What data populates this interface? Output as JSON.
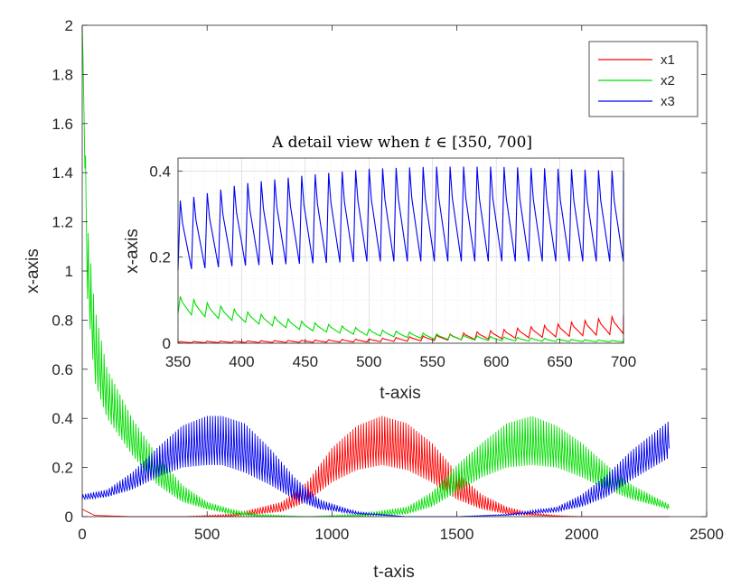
{
  "chart_data": [
    {
      "type": "line",
      "role": "main",
      "title": "",
      "xlabel": "t-axis",
      "ylabel": "x-axis",
      "xlim": [
        0,
        2500
      ],
      "ylim": [
        0,
        2
      ],
      "xticks": [
        0,
        500,
        1000,
        1500,
        2000,
        2500
      ],
      "yticks": [
        0,
        0.2,
        0.4,
        0.6,
        0.8,
        1,
        1.2,
        1.4,
        1.6,
        1.8,
        2
      ],
      "xtick_labels": [
        "0",
        "500",
        "1000",
        "1500",
        "2000",
        "2500"
      ],
      "ytick_labels": [
        "0",
        "0.2",
        "0.4",
        "0.6",
        "0.8",
        "1",
        "1.2",
        "1.4",
        "1.6",
        "1.8",
        "2"
      ],
      "grid": false,
      "legend_position": "top-right",
      "t_range": [
        0,
        2350
      ],
      "series": [
        {
          "name": "x1",
          "color": "#ff0000",
          "envelope": {
            "t": [
              0,
              50,
              200,
              400,
              600,
              800,
              900,
              1000,
              1100,
              1200,
              1300,
              1400,
              1500,
              1600,
              1700,
              1800,
              1900,
              2000,
              2100,
              2200,
              2350
            ],
            "lo": [
              0.03,
              0.005,
              0,
              0,
              0,
              0.02,
              0.06,
              0.14,
              0.19,
              0.21,
              0.19,
              0.14,
              0.07,
              0.03,
              0.01,
              0.005,
              0,
              0,
              0,
              0,
              0
            ],
            "hi": [
              0.03,
              0.005,
              0,
              0,
              0.01,
              0.06,
              0.14,
              0.28,
              0.37,
              0.41,
              0.38,
              0.3,
              0.18,
              0.09,
              0.04,
              0.015,
              0.005,
              0,
              0,
              0,
              0
            ]
          }
        },
        {
          "name": "x2",
          "color": "#00dd00",
          "envelope": {
            "t": [
              0,
              20,
              50,
              100,
              200,
              300,
              400,
              500,
              600,
              700,
              900,
              1100,
              1300,
              1400,
              1500,
              1600,
              1700,
              1800,
              1900,
              2000,
              2100,
              2200,
              2350
            ],
            "lo": [
              2.0,
              0.9,
              0.55,
              0.4,
              0.25,
              0.13,
              0.06,
              0.03,
              0.01,
              0,
              0,
              0,
              0.01,
              0.04,
              0.1,
              0.16,
              0.2,
              0.21,
              0.2,
              0.16,
              0.11,
              0.07,
              0.03
            ],
            "hi": [
              2.0,
              1.2,
              0.85,
              0.6,
              0.4,
              0.25,
              0.13,
              0.06,
              0.03,
              0.01,
              0,
              0.01,
              0.04,
              0.1,
              0.21,
              0.3,
              0.38,
              0.41,
              0.37,
              0.3,
              0.21,
              0.13,
              0.05
            ]
          }
        },
        {
          "name": "x3",
          "color": "#0000ee",
          "envelope": {
            "t": [
              0,
              100,
              200,
              300,
              400,
              500,
              560,
              650,
              750,
              850,
              950,
              1100,
              1300,
              1500,
              1700,
              1900,
              2000,
              2100,
              2200,
              2350
            ],
            "lo": [
              0.07,
              0.08,
              0.11,
              0.16,
              0.2,
              0.21,
              0.21,
              0.18,
              0.13,
              0.07,
              0.03,
              0.01,
              0,
              0,
              0.005,
              0.02,
              0.04,
              0.08,
              0.15,
              0.24
            ],
            "hi": [
              0.09,
              0.11,
              0.18,
              0.28,
              0.37,
              0.41,
              0.41,
              0.38,
              0.28,
              0.16,
              0.07,
              0.02,
              0,
              0,
              0.01,
              0.04,
              0.09,
              0.17,
              0.27,
              0.39
            ]
          }
        }
      ]
    },
    {
      "type": "line",
      "role": "inset",
      "title_text": "A detail view when",
      "title_var": "t",
      "title_symbol": "∈",
      "title_interval": "[350, 700]",
      "xlabel": "t-axis",
      "ylabel": "x-axis",
      "xlim": [
        350,
        700
      ],
      "ylim": [
        0,
        0.43
      ],
      "xticks": [
        350,
        400,
        450,
        500,
        550,
        600,
        650,
        700
      ],
      "yticks": [
        0,
        0.2,
        0.4
      ],
      "xtick_labels": [
        "350",
        "400",
        "450",
        "500",
        "550",
        "600",
        "650",
        "700"
      ],
      "ytick_labels": [
        "0",
        "0.2",
        "0.4"
      ],
      "grid": true,
      "period": 10.6,
      "series": [
        {
          "name": "x1",
          "color": "#ff0000",
          "envelope": {
            "t": [
              350,
              450,
              500,
              550,
              600,
              650,
              700
            ],
            "lo": [
              0.001,
              0.002,
              0.003,
              0.006,
              0.01,
              0.015,
              0.022
            ],
            "hi": [
              0.004,
              0.007,
              0.01,
              0.018,
              0.03,
              0.045,
              0.065
            ]
          }
        },
        {
          "name": "x2",
          "color": "#00dd00",
          "envelope": {
            "t": [
              350,
              400,
              450,
              500,
              550,
              600,
              650,
              700
            ],
            "lo": [
              0.07,
              0.05,
              0.03,
              0.018,
              0.01,
              0.006,
              0.004,
              0.003
            ],
            "hi": [
              0.11,
              0.075,
              0.05,
              0.033,
              0.022,
              0.015,
              0.01,
              0.006
            ]
          }
        },
        {
          "name": "x3",
          "color": "#0000ee",
          "envelope": {
            "t": [
              350,
              400,
              450,
              500,
              550,
              600,
              650,
              700
            ],
            "lo": [
              0.17,
              0.18,
              0.185,
              0.19,
              0.19,
              0.19,
              0.19,
              0.19
            ],
            "hi": [
              0.33,
              0.37,
              0.39,
              0.405,
              0.41,
              0.41,
              0.405,
              0.4
            ]
          }
        }
      ]
    }
  ],
  "legend": [
    {
      "label": "x1",
      "color": "#ff0000"
    },
    {
      "label": "x2",
      "color": "#00dd00"
    },
    {
      "label": "x3",
      "color": "#0000ee"
    }
  ]
}
